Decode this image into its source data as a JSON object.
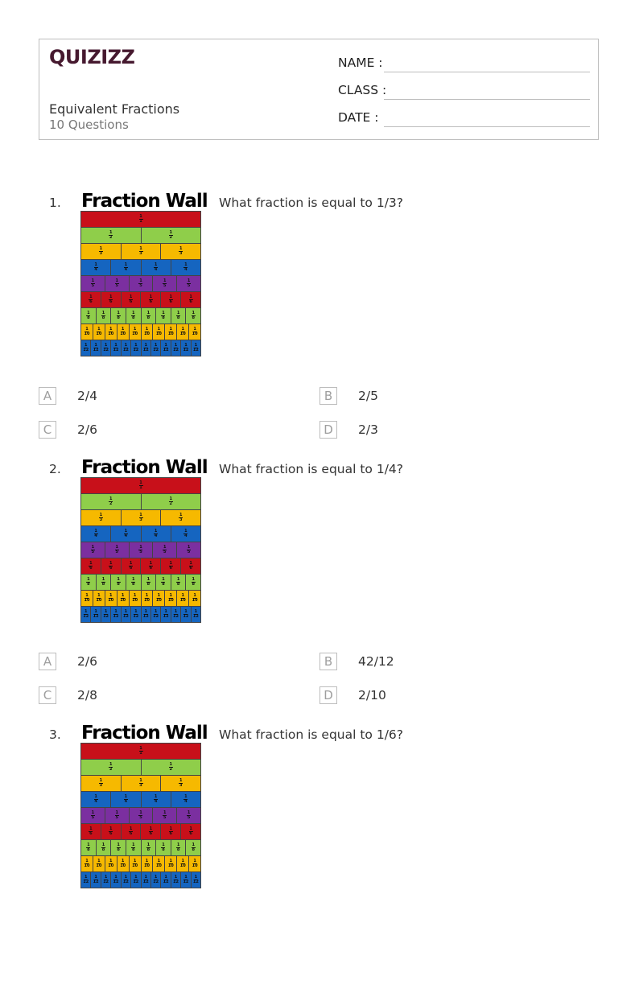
{
  "header": {
    "logo": "QUIZIZZ",
    "title": "Equivalent Fractions",
    "subtitle": "10 Questions",
    "fields": [
      {
        "label": "NAME :"
      },
      {
        "label": "CLASS :"
      },
      {
        "label": "DATE  :"
      }
    ]
  },
  "fraction_wall": {
    "title": "Fraction Wall",
    "rows": [
      {
        "denominator": "1",
        "count": 1,
        "color": "#c8101a"
      },
      {
        "denominator": "2",
        "count": 2,
        "color": "#8fce4a"
      },
      {
        "denominator": "3",
        "count": 3,
        "color": "#f6b900"
      },
      {
        "denominator": "4",
        "count": 4,
        "color": "#1565c0"
      },
      {
        "denominator": "5",
        "count": 5,
        "color": "#7b2fa0"
      },
      {
        "denominator": "6",
        "count": 6,
        "color": "#c8101a"
      },
      {
        "denominator": "8",
        "count": 8,
        "color": "#8fce4a"
      },
      {
        "denominator": "10",
        "count": 10,
        "color": "#f6b900"
      },
      {
        "denominator": "12",
        "count": 12,
        "color": "#1565c0"
      }
    ]
  },
  "questions": [
    {
      "number": "1.",
      "text": "What fraction is equal to 1/3?",
      "options": [
        {
          "letter": "A",
          "text": "2/4"
        },
        {
          "letter": "B",
          "text": "2/5"
        },
        {
          "letter": "C",
          "text": "2/6"
        },
        {
          "letter": "D",
          "text": "2/3"
        }
      ]
    },
    {
      "number": "2.",
      "text": "What fraction is equal to 1/4?",
      "options": [
        {
          "letter": "A",
          "text": "2/6"
        },
        {
          "letter": "B",
          "text": "42/12"
        },
        {
          "letter": "C",
          "text": "2/8"
        },
        {
          "letter": "D",
          "text": "2/10"
        }
      ]
    },
    {
      "number": "3.",
      "text": "What fraction is equal to 1/6?",
      "options": []
    }
  ]
}
